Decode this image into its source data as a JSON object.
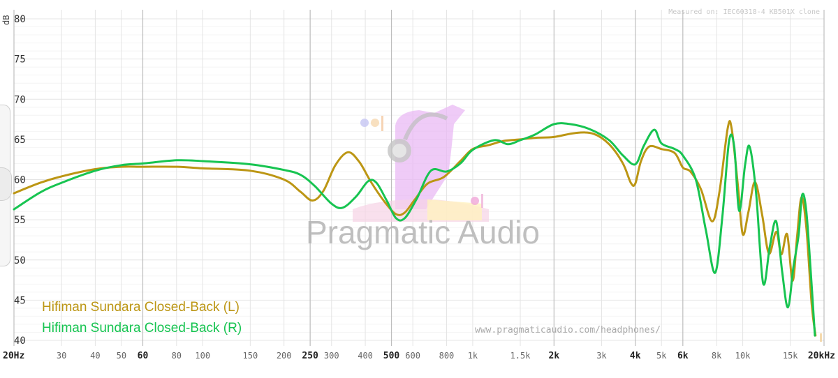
{
  "measured_on": "Measured on: IEC60318-4 KB501X clone",
  "url": "www.pragmaticaudio.com/headphones/",
  "watermark": "Pragmatic Audio",
  "colors": {
    "left": "#BC9614",
    "right": "#17C451",
    "grid": "#e4e4e4",
    "grid_major": "#bdbdbd"
  },
  "chart_data": {
    "type": "line",
    "title": "",
    "xlabel": "",
    "ylabel": "dB",
    "x_scale": "log",
    "xlim": [
      20,
      20000
    ],
    "ylim": [
      40,
      81
    ],
    "grid": true,
    "legend_position": "bottom-left",
    "y_ticks": [
      {
        "value": 40,
        "label": "40"
      },
      {
        "value": 45,
        "label": "45"
      },
      {
        "value": 50,
        "label": "50"
      },
      {
        "value": 55,
        "label": "55"
      },
      {
        "value": 60,
        "label": "60"
      },
      {
        "value": 65,
        "label": "65"
      },
      {
        "value": 70,
        "label": "70"
      },
      {
        "value": 75,
        "label": "75"
      },
      {
        "value": 80,
        "label": "80"
      }
    ],
    "x_ticks": [
      {
        "value": 20,
        "label": "20Hz",
        "major": true
      },
      {
        "value": 30,
        "label": "30",
        "major": false
      },
      {
        "value": 40,
        "label": "40",
        "major": false
      },
      {
        "value": 50,
        "label": "50",
        "major": false
      },
      {
        "value": 60,
        "label": "60",
        "major": true
      },
      {
        "value": 80,
        "label": "80",
        "major": false
      },
      {
        "value": 100,
        "label": "100",
        "major": false
      },
      {
        "value": 150,
        "label": "150",
        "major": false
      },
      {
        "value": 200,
        "label": "200",
        "major": false
      },
      {
        "value": 250,
        "label": "250",
        "major": true
      },
      {
        "value": 300,
        "label": "300",
        "major": false
      },
      {
        "value": 400,
        "label": "400",
        "major": false
      },
      {
        "value": 500,
        "label": "500",
        "major": true
      },
      {
        "value": 600,
        "label": "600",
        "major": false
      },
      {
        "value": 800,
        "label": "800",
        "major": false
      },
      {
        "value": 1000,
        "label": "1k",
        "major": false
      },
      {
        "value": 1500,
        "label": "1.5k",
        "major": false
      },
      {
        "value": 2000,
        "label": "2k",
        "major": true
      },
      {
        "value": 3000,
        "label": "3k",
        "major": false
      },
      {
        "value": 4000,
        "label": "4k",
        "major": true
      },
      {
        "value": 5000,
        "label": "5k",
        "major": false
      },
      {
        "value": 6000,
        "label": "6k",
        "major": true
      },
      {
        "value": 8000,
        "label": "8k",
        "major": false
      },
      {
        "value": 10000,
        "label": "10k",
        "major": false
      },
      {
        "value": 15000,
        "label": "15k",
        "major": false
      },
      {
        "value": 20000,
        "label": "20kHz",
        "major": true
      }
    ],
    "series": [
      {
        "name": "Hifiman Sundara Closed-Back (L)",
        "color": "#BC9614",
        "points": [
          [
            20,
            58.3
          ],
          [
            25,
            59.6
          ],
          [
            30,
            60.4
          ],
          [
            40,
            61.3
          ],
          [
            50,
            61.6
          ],
          [
            60,
            61.6
          ],
          [
            80,
            61.6
          ],
          [
            100,
            61.4
          ],
          [
            150,
            61.1
          ],
          [
            200,
            60.0
          ],
          [
            230,
            58.5
          ],
          [
            255,
            57.4
          ],
          [
            280,
            58.6
          ],
          [
            310,
            61.8
          ],
          [
            345,
            63.4
          ],
          [
            380,
            62.2
          ],
          [
            420,
            59.7
          ],
          [
            470,
            57.3
          ],
          [
            520,
            55.7
          ],
          [
            560,
            55.9
          ],
          [
            610,
            57.5
          ],
          [
            680,
            59.5
          ],
          [
            780,
            60.3
          ],
          [
            900,
            62.3
          ],
          [
            1000,
            63.8
          ],
          [
            1150,
            64.3
          ],
          [
            1300,
            64.8
          ],
          [
            1500,
            65.0
          ],
          [
            1700,
            65.2
          ],
          [
            2000,
            65.3
          ],
          [
            2400,
            65.8
          ],
          [
            2800,
            65.7
          ],
          [
            3200,
            64.4
          ],
          [
            3600,
            62.0
          ],
          [
            3850,
            59.6
          ],
          [
            4000,
            59.5
          ],
          [
            4200,
            62.3
          ],
          [
            4500,
            64.1
          ],
          [
            5000,
            63.8
          ],
          [
            5600,
            63.3
          ],
          [
            6000,
            61.5
          ],
          [
            6400,
            61.0
          ],
          [
            7000,
            58.8
          ],
          [
            7700,
            54.8
          ],
          [
            8200,
            58.5
          ],
          [
            8800,
            66.4
          ],
          [
            9100,
            66.3
          ],
          [
            9600,
            59.2
          ],
          [
            10000,
            53.2
          ],
          [
            10500,
            56.0
          ],
          [
            11100,
            59.7
          ],
          [
            11800,
            55.6
          ],
          [
            12500,
            50.8
          ],
          [
            13300,
            53.5
          ],
          [
            13900,
            50.7
          ],
          [
            14600,
            53.2
          ],
          [
            15300,
            47.4
          ],
          [
            15900,
            53.0
          ],
          [
            16500,
            57.8
          ],
          [
            17200,
            54.0
          ],
          [
            18000,
            44.5
          ],
          [
            18600,
            40.6
          ]
        ]
      },
      {
        "name": "Hifiman Sundara Closed-Back (R)",
        "color": "#17C451",
        "points": [
          [
            20,
            56.3
          ],
          [
            25,
            58.4
          ],
          [
            30,
            59.6
          ],
          [
            40,
            61.1
          ],
          [
            50,
            61.8
          ],
          [
            60,
            62.0
          ],
          [
            80,
            62.4
          ],
          [
            100,
            62.3
          ],
          [
            150,
            61.9
          ],
          [
            200,
            61.2
          ],
          [
            230,
            60.6
          ],
          [
            260,
            59.2
          ],
          [
            300,
            57.0
          ],
          [
            330,
            56.5
          ],
          [
            370,
            57.9
          ],
          [
            410,
            59.8
          ],
          [
            440,
            59.6
          ],
          [
            480,
            57.4
          ],
          [
            520,
            55.2
          ],
          [
            560,
            55.2
          ],
          [
            620,
            57.6
          ],
          [
            700,
            61.1
          ],
          [
            800,
            61.0
          ],
          [
            900,
            62.0
          ],
          [
            1000,
            63.7
          ],
          [
            1200,
            64.9
          ],
          [
            1350,
            64.4
          ],
          [
            1500,
            64.9
          ],
          [
            1700,
            65.6
          ],
          [
            2000,
            66.9
          ],
          [
            2300,
            66.9
          ],
          [
            2700,
            66.3
          ],
          [
            3200,
            64.9
          ],
          [
            3600,
            63.0
          ],
          [
            4000,
            61.9
          ],
          [
            4300,
            64.2
          ],
          [
            4700,
            66.2
          ],
          [
            5000,
            64.5
          ],
          [
            5600,
            63.8
          ],
          [
            6000,
            63.0
          ],
          [
            6700,
            60.0
          ],
          [
            7300,
            53.7
          ],
          [
            7900,
            48.4
          ],
          [
            8400,
            55.3
          ],
          [
            8900,
            64.8
          ],
          [
            9300,
            64.1
          ],
          [
            9700,
            56.1
          ],
          [
            10200,
            61.8
          ],
          [
            10600,
            64.1
          ],
          [
            11200,
            58.4
          ],
          [
            11900,
            47.1
          ],
          [
            12600,
            51.7
          ],
          [
            13300,
            54.8
          ],
          [
            14000,
            48.5
          ],
          [
            14700,
            44.1
          ],
          [
            15400,
            49.1
          ],
          [
            16100,
            53.1
          ],
          [
            16600,
            58.1
          ],
          [
            17200,
            56.0
          ],
          [
            17900,
            48.0
          ],
          [
            18500,
            40.6
          ]
        ]
      }
    ]
  }
}
